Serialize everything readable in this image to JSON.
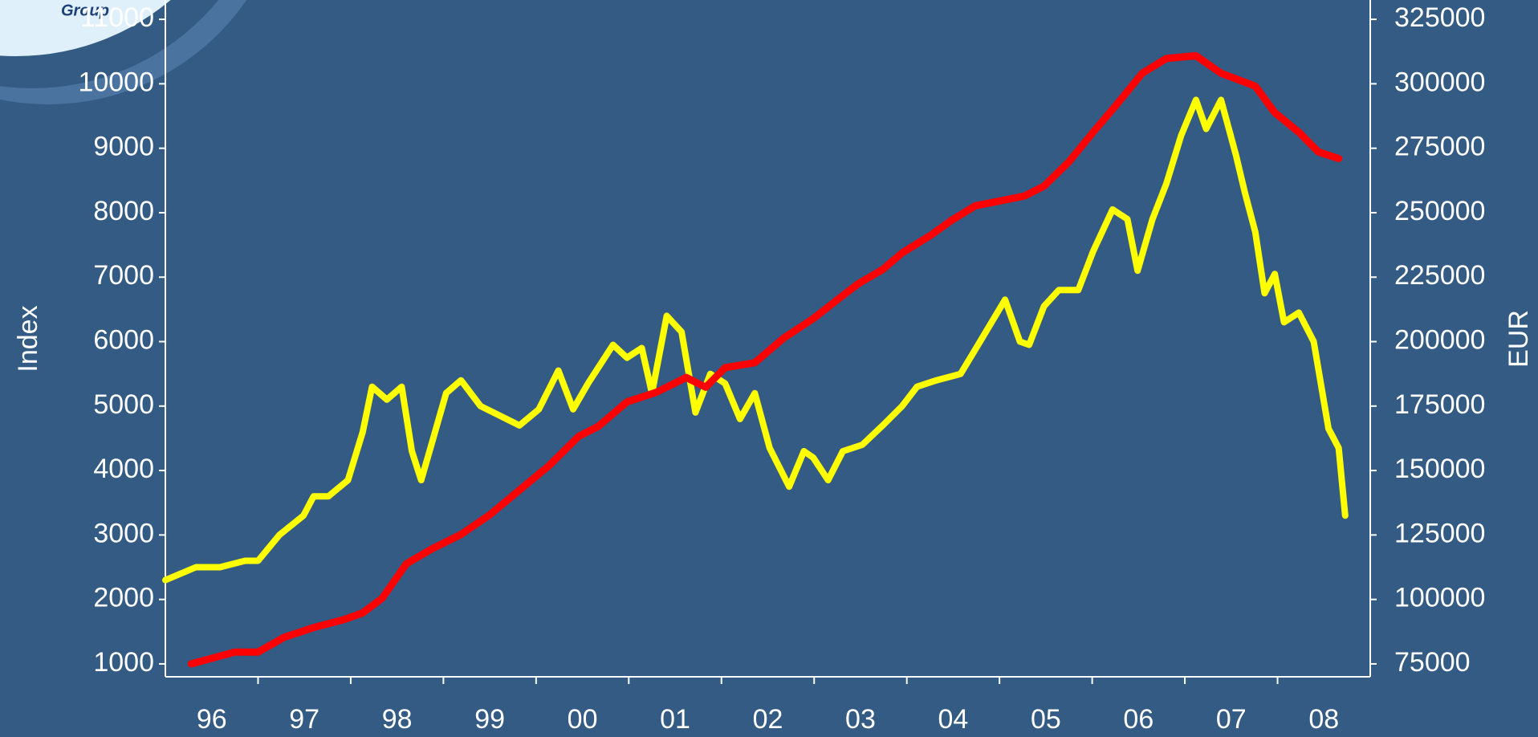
{
  "logo_text": "Group",
  "chart_data": {
    "type": "line",
    "ylabel": "Index",
    "y2label": "EUR",
    "categories": [
      "96",
      "97",
      "98",
      "99",
      "00",
      "01",
      "02",
      "03",
      "04",
      "05",
      "06",
      "07",
      "08"
    ],
    "xlim": [
      1996,
      2009
    ],
    "ylim": [
      800,
      11300
    ],
    "yticks": [
      1000,
      2000,
      3000,
      4000,
      5000,
      6000,
      7000,
      8000,
      9000,
      10000,
      11000
    ],
    "y2lim": [
      70000,
      332500
    ],
    "y2ticks": [
      75000,
      100000,
      125000,
      150000,
      175000,
      200000,
      225000,
      250000,
      275000,
      300000,
      325000
    ],
    "series": [
      {
        "name": "Index",
        "color": "#ffff00",
        "axis": "y",
        "x": [
          1996.0,
          1996.33,
          1996.59,
          1996.86,
          1997.0,
          1997.23,
          1997.49,
          1997.6,
          1997.76,
          1997.97,
          1998.13,
          1998.23,
          1998.39,
          1998.55,
          1998.66,
          1998.76,
          1998.87,
          1999.03,
          1999.19,
          1999.4,
          1999.61,
          1999.82,
          2000.03,
          2000.24,
          2000.4,
          2000.56,
          2000.83,
          2000.98,
          2001.14,
          2001.25,
          2001.41,
          2001.57,
          2001.72,
          2001.88,
          2002.04,
          2002.2,
          2002.36,
          2002.52,
          2002.73,
          2002.89,
          2002.99,
          2003.15,
          2003.31,
          2003.52,
          2003.74,
          2003.95,
          2004.11,
          2004.32,
          2004.58,
          2004.79,
          2005.06,
          2005.22,
          2005.32,
          2005.48,
          2005.64,
          2005.85,
          2006.01,
          2006.22,
          2006.38,
          2006.49,
          2006.65,
          2006.8,
          2006.96,
          2007.12,
          2007.23,
          2007.39,
          2007.55,
          2007.65,
          2007.76,
          2007.86,
          2007.97,
          2008.07,
          2008.23,
          2008.39,
          2008.55,
          2008.66,
          2008.73
        ],
        "values": [
          2300,
          2500,
          2500,
          2600,
          2600,
          3000,
          3300,
          3600,
          3600,
          3850,
          4600,
          5300,
          5100,
          5300,
          4300,
          3850,
          4400,
          5200,
          5400,
          5000,
          4850,
          4700,
          4950,
          5550,
          4950,
          5350,
          5950,
          5750,
          5900,
          5200,
          6400,
          6150,
          4900,
          5500,
          5350,
          4800,
          5200,
          4350,
          3750,
          4300,
          4200,
          3850,
          4300,
          4400,
          4700,
          5000,
          5300,
          5400,
          5500,
          6000,
          6650,
          6000,
          5950,
          6550,
          6800,
          6800,
          7400,
          8050,
          7900,
          7100,
          7900,
          8450,
          9200,
          9750,
          9300,
          9750,
          8900,
          8300,
          7700,
          6750,
          7050,
          6300,
          6450,
          6000,
          4650,
          4350,
          3300
        ]
      },
      {
        "name": "EUR",
        "color": "#ff0000",
        "axis": "y2",
        "x": [
          1996.28,
          1996.75,
          1997.0,
          1997.28,
          1997.6,
          1997.92,
          1998.13,
          1998.34,
          1998.6,
          1998.87,
          1999.19,
          1999.5,
          1999.82,
          2000.14,
          2000.46,
          2000.67,
          2000.98,
          2001.3,
          2001.62,
          2001.83,
          2002.04,
          2002.36,
          2002.67,
          2002.99,
          2003.26,
          2003.47,
          2003.74,
          2003.95,
          2004.26,
          2004.48,
          2004.74,
          2005.01,
          2005.27,
          2005.48,
          2005.75,
          2006.01,
          2006.28,
          2006.54,
          2006.8,
          2007.12,
          2007.39,
          2007.76,
          2007.97,
          2008.23,
          2008.44,
          2008.66
        ],
        "values": [
          75000,
          79600,
          79600,
          85300,
          89100,
          92100,
          94800,
          100500,
          113800,
          119500,
          125200,
          132800,
          142400,
          151900,
          163300,
          167100,
          176600,
          180400,
          186100,
          182300,
          189900,
          191800,
          201300,
          208900,
          216500,
          222300,
          228000,
          234400,
          241300,
          247000,
          252700,
          254600,
          256500,
          260300,
          269800,
          281200,
          292600,
          304100,
          309800,
          310900,
          304100,
          299100,
          288800,
          281200,
          273600,
          271000
        ]
      }
    ]
  }
}
